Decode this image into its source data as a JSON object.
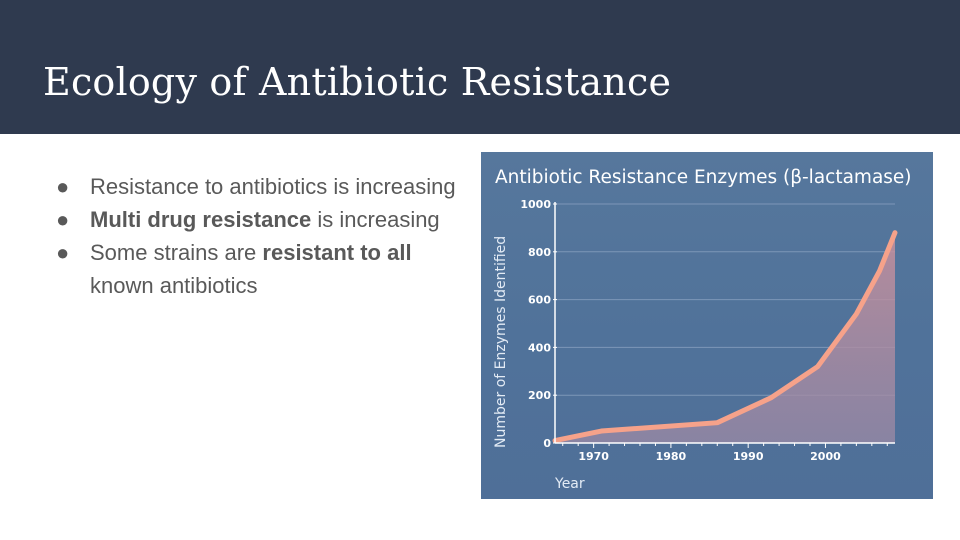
{
  "slide": {
    "title": "Ecology of Antibiotic Resistance",
    "bullets": [
      {
        "parts": [
          {
            "text": "Resistance to antibiotics is increasing",
            "bold": false
          }
        ]
      },
      {
        "parts": [
          {
            "text": "Multi drug resistance",
            "bold": true
          },
          {
            "text": " is increasing",
            "bold": false
          }
        ]
      },
      {
        "parts": [
          {
            "text": "Some strains are ",
            "bold": false
          },
          {
            "text": "resistant to all",
            "bold": true
          },
          {
            "text": " known antibiotics",
            "bold": false
          }
        ]
      }
    ],
    "bullet_glyph": "●"
  },
  "chart_data": {
    "type": "area",
    "title": "Antibiotic Resistance Enzymes (β-lactamase)",
    "xlabel": "Year",
    "ylabel": "Number of Enzymes Identified",
    "x": [
      1965,
      1971,
      1986,
      1993,
      1999,
      2004,
      2007,
      2009
    ],
    "series": [
      {
        "values": [
          10,
          50,
          85,
          190,
          320,
          540,
          720,
          880
        ]
      }
    ],
    "xlim": [
      1965,
      2009
    ],
    "ylim": [
      0,
      1000
    ],
    "xticks": [
      1970,
      1980,
      1990,
      2000
    ],
    "yticks": [
      0,
      200,
      400,
      600,
      800,
      1000
    ],
    "grid": true,
    "colors": {
      "line": "#f6a28a",
      "fill": "#c48a96",
      "background": "#52739a",
      "grid": "#7d97b8",
      "text": "#ffffff"
    }
  }
}
